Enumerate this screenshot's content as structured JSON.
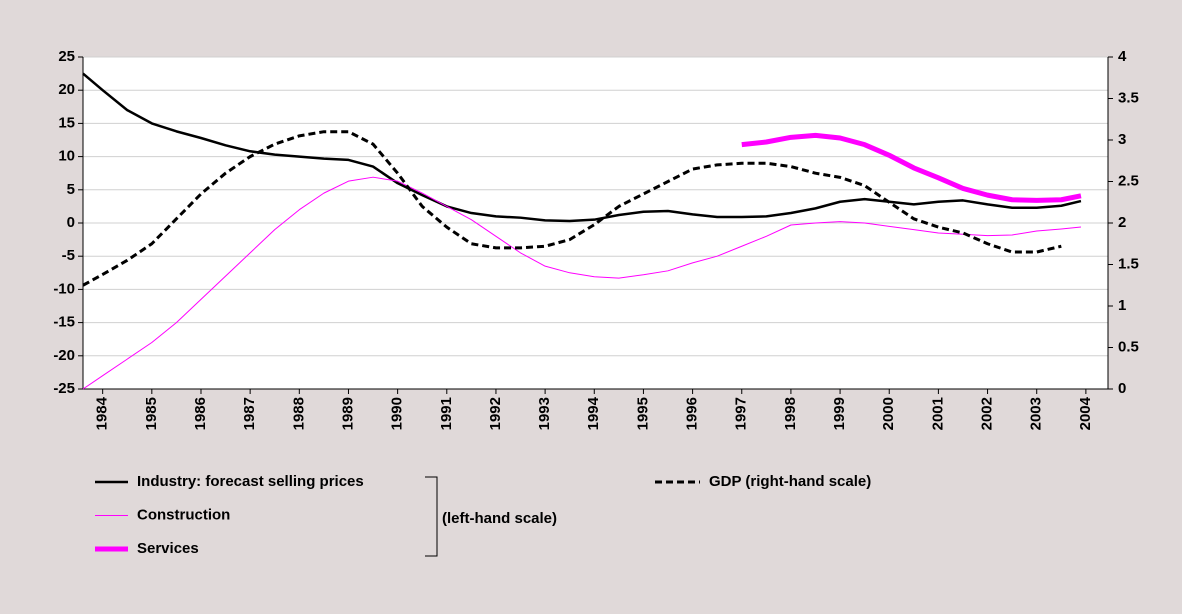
{
  "chart_data": {
    "type": "line",
    "x": [
      1983.6,
      1984,
      1984.5,
      1985,
      1985.5,
      1986,
      1986.5,
      1987,
      1987.5,
      1988,
      1988.5,
      1989,
      1989.5,
      1990,
      1990.5,
      1991,
      1991.5,
      1992,
      1992.5,
      1993,
      1993.5,
      1994,
      1994.5,
      1995,
      1995.5,
      1996,
      1996.5,
      1997,
      1997.5,
      1998,
      1998.5,
      1999,
      1999.5,
      2000,
      2000.5,
      2001,
      2001.5,
      2002,
      2002.5,
      2003,
      2003.5,
      2003.9
    ],
    "series": [
      {
        "name": "Industry: forecast selling prices",
        "color": "#000000",
        "width": 2.5,
        "values": [
          22.5,
          20,
          17,
          15,
          13.8,
          12.8,
          11.7,
          10.8,
          10.3,
          10,
          9.7,
          9.5,
          8.5,
          6,
          4.2,
          2.5,
          1.5,
          1,
          0.8,
          0.4,
          0.3,
          0.5,
          1.2,
          1.7,
          1.8,
          1.3,
          0.9,
          0.9,
          1,
          1.5,
          2.2,
          3.2,
          3.6,
          3.2,
          2.8,
          3.2,
          3.4,
          2.8,
          2.3,
          2.3,
          2.6,
          3.3
        ]
      },
      {
        "name": "Construction",
        "color": "#ff00ff",
        "width": 1,
        "values": [
          -25,
          -23,
          -20.5,
          -18,
          -15,
          -11.5,
          -8,
          -4.5,
          -1,
          2,
          4.5,
          6.3,
          6.9,
          6.3,
          4.5,
          2.5,
          0.5,
          -2,
          -4.5,
          -6.5,
          -7.5,
          -8.1,
          -8.3,
          -7.8,
          -7.2,
          -6,
          -5,
          -3.5,
          -2,
          -0.3,
          0,
          0.2,
          0,
          -0.5,
          -1,
          -1.5,
          -1.7,
          -1.9,
          -1.8,
          -1.2,
          -0.9,
          -0.6
        ]
      },
      {
        "name": "Services",
        "color": "#ff00ff",
        "width": 5,
        "values": [
          null,
          null,
          null,
          null,
          null,
          null,
          null,
          null,
          null,
          null,
          null,
          null,
          null,
          null,
          null,
          null,
          null,
          null,
          null,
          null,
          null,
          null,
          null,
          null,
          null,
          null,
          null,
          11.8,
          12.2,
          12.9,
          13.2,
          12.8,
          11.8,
          10.2,
          8.3,
          6.8,
          5.2,
          4.2,
          3.5,
          3.4,
          3.5,
          4.1
        ]
      },
      {
        "name": "GDP (right-hand scale)",
        "color": "#000000",
        "width": 3,
        "dashed": true,
        "axis": "y2",
        "values": [
          1.25,
          1.38,
          1.55,
          1.75,
          2.05,
          2.35,
          2.6,
          2.8,
          2.95,
          3.05,
          3.1,
          3.1,
          2.95,
          2.6,
          2.2,
          1.95,
          1.75,
          1.7,
          1.7,
          1.72,
          1.8,
          1.98,
          2.2,
          2.35,
          2.5,
          2.65,
          2.7,
          2.72,
          2.72,
          2.68,
          2.6,
          2.55,
          2.45,
          2.25,
          2.05,
          1.95,
          1.88,
          1.75,
          1.65,
          1.65,
          1.72,
          null
        ]
      }
    ],
    "annotation": "(left-hand scale)",
    "xlim": [
      1983.6,
      2004.45
    ],
    "xticks": [
      1984,
      1985,
      1986,
      1987,
      1988,
      1989,
      1990,
      1991,
      1992,
      1993,
      1994,
      1995,
      1996,
      1997,
      1998,
      1999,
      2000,
      2001,
      2002,
      2003,
      2004
    ],
    "ylim": [
      -25,
      25
    ],
    "yticks": [
      -25,
      -20,
      -15,
      -10,
      -5,
      0,
      5,
      10,
      15,
      20,
      25
    ],
    "y2lim": [
      0,
      4
    ],
    "y2ticks": [
      0,
      0.5,
      1,
      1.5,
      2,
      2.5,
      3,
      3.5,
      4
    ],
    "grid": true
  }
}
